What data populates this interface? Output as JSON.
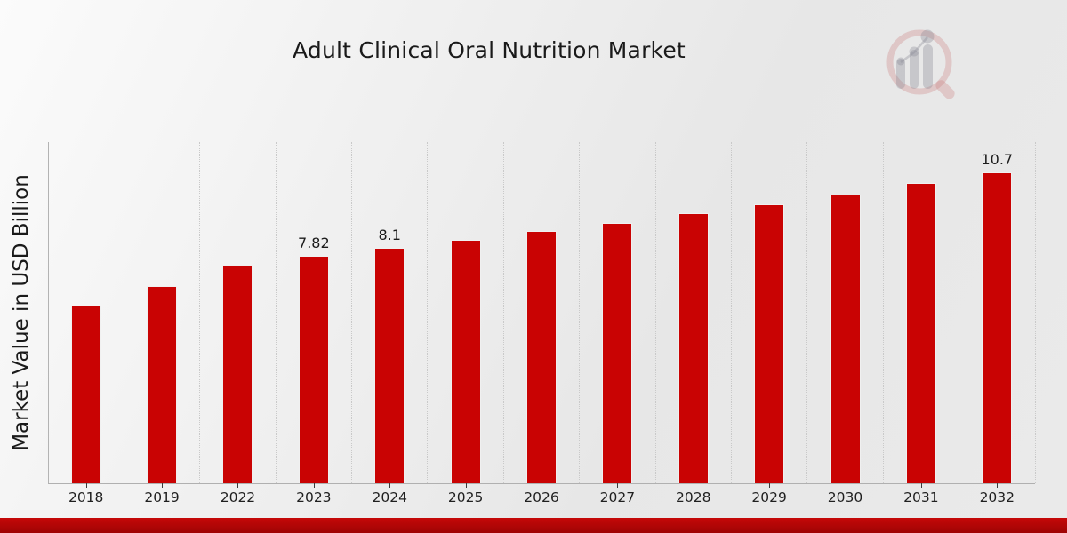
{
  "page": {
    "title": "Adult Clinical Oral Nutrition Market"
  },
  "chart_data": {
    "type": "bar",
    "title": "Adult Clinical Oral Nutrition Market",
    "xlabel": "",
    "ylabel": "Market Value in USD Billion",
    "categories": [
      "2018",
      "2019",
      "2022",
      "2023",
      "2024",
      "2025",
      "2026",
      "2027",
      "2028",
      "2029",
      "2030",
      "2031",
      "2032"
    ],
    "values": [
      6.12,
      6.8,
      7.52,
      7.82,
      8.1,
      8.39,
      8.68,
      8.97,
      9.28,
      9.61,
      9.94,
      10.33,
      10.7
    ],
    "bar_labels": [
      "",
      "",
      "",
      "7.82",
      "8.1",
      "",
      "",
      "",
      "",
      "",
      "",
      "",
      "10.7"
    ],
    "ylim": [
      0,
      11.74
    ],
    "grid": "vertical-dotted",
    "legend": false,
    "colors": {
      "bar": "#c90303",
      "bar_edge": "#f0f0f0",
      "axis": "#b0b0b0",
      "gridline": "#c9c9c9",
      "tick": "#3a3a3a",
      "text": "#1a1a1a",
      "banner_top": "#c50808",
      "banner_bottom": "#9e0404"
    }
  },
  "branding": {
    "logo_name": "magnifier-bar-chart-logo",
    "logo_ring_color": "rgba(201,124,124,0.30)",
    "logo_bar_color": "rgba(138,138,148,0.35)"
  }
}
